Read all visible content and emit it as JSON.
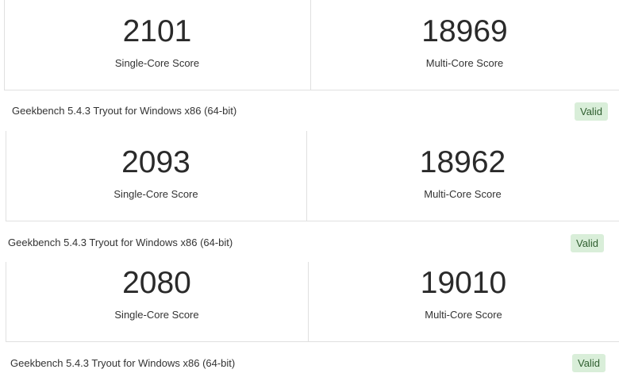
{
  "results": [
    {
      "single_core": 2101,
      "single_core_label": "Single-Core Score",
      "multi_core": 18969,
      "multi_core_label": "Multi-Core Score",
      "version": "Geekbench 5.4.3 Tryout for Windows x86 (64-bit)",
      "status": "Valid"
    },
    {
      "single_core": 2093,
      "single_core_label": "Single-Core Score",
      "multi_core": 18962,
      "multi_core_label": "Multi-Core Score",
      "version": "Geekbench 5.4.3 Tryout for Windows x86 (64-bit)",
      "status": "Valid"
    },
    {
      "single_core": 2080,
      "single_core_label": "Single-Core Score",
      "multi_core": 19010,
      "multi_core_label": "Multi-Core Score",
      "version": "Geekbench 5.4.3 Tryout for Windows x86 (64-bit)",
      "status": "Valid"
    }
  ]
}
